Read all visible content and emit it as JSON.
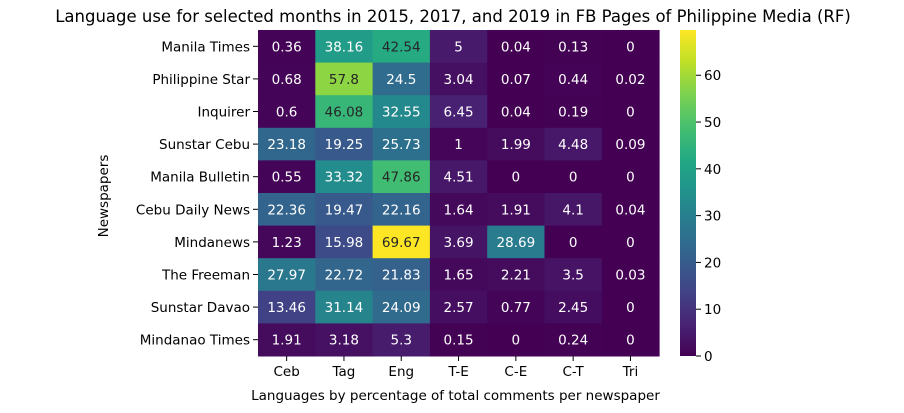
{
  "chart_data": {
    "type": "heatmap",
    "title": "Language use for selected months in 2015, 2017, and 2019 in FB Pages of Philippine Media (RF)",
    "xlabel": "Languages by percentage of total comments per newspaper",
    "ylabel": "Newspapers",
    "columns": [
      "Ceb",
      "Tag",
      "Eng",
      "T-E",
      "C-E",
      "C-T",
      "Tri"
    ],
    "rows": [
      "Manila Times",
      "Philippine Star",
      "Inquirer",
      "Sunstar Cebu",
      "Manila Bulletin",
      "Cebu Daily News",
      "Mindanews",
      "The Freeman",
      "Sunstar Davao",
      "Mindanao Times"
    ],
    "values": [
      [
        0.36,
        38.16,
        42.54,
        5,
        0.04,
        0.13,
        0
      ],
      [
        0.68,
        57.8,
        24.5,
        3.04,
        0.07,
        0.44,
        0.02
      ],
      [
        0.6,
        46.08,
        32.55,
        6.45,
        0.04,
        0.19,
        0
      ],
      [
        23.18,
        19.25,
        25.73,
        1,
        1.99,
        4.48,
        0.09
      ],
      [
        0.55,
        33.32,
        47.86,
        4.51,
        0,
        0,
        0
      ],
      [
        22.36,
        19.47,
        22.16,
        1.64,
        1.91,
        4.1,
        0.04
      ],
      [
        1.23,
        15.98,
        69.67,
        3.69,
        28.69,
        0,
        0
      ],
      [
        27.97,
        22.72,
        21.83,
        1.65,
        2.21,
        3.5,
        0.03
      ],
      [
        13.46,
        31.14,
        24.09,
        2.57,
        0.77,
        2.45,
        0
      ],
      [
        1.91,
        3.18,
        5.3,
        0.15,
        0,
        0.24,
        0
      ]
    ],
    "colorbar": {
      "colormap": "viridis",
      "range": [
        0,
        69.67
      ],
      "ticks": [
        0,
        10,
        20,
        30,
        40,
        50,
        60
      ]
    },
    "grid": false
  }
}
